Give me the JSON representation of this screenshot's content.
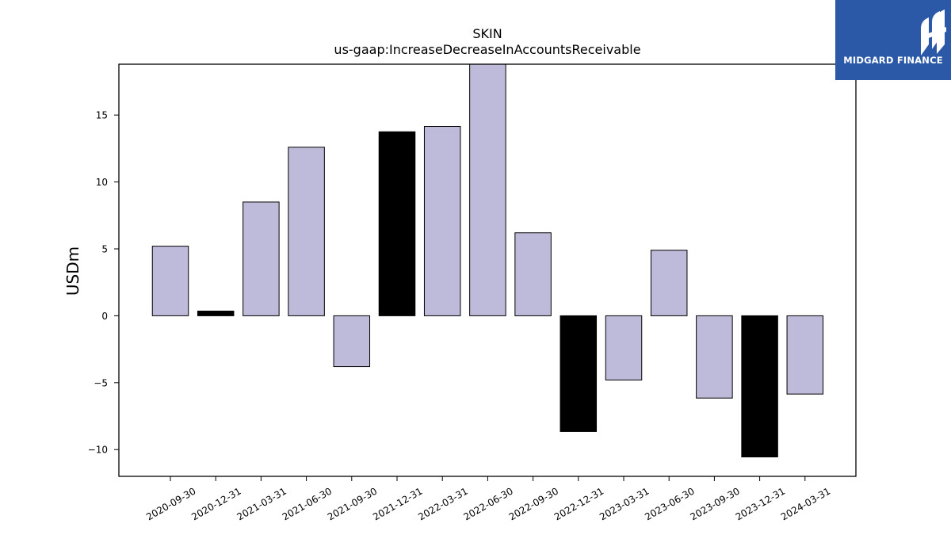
{
  "chart_data": {
    "type": "bar",
    "title": "SKIN",
    "subtitle": "us-gaap:IncreaseDecreaseInAccountsReceivable",
    "xlabel": "",
    "ylabel": "USDm",
    "categories": [
      "2020-09-30",
      "2020-12-31",
      "2021-03-31",
      "2021-06-30",
      "2021-09-30",
      "2021-12-31",
      "2022-03-31",
      "2022-06-30",
      "2022-09-30",
      "2022-12-31",
      "2023-03-31",
      "2023-06-30",
      "2023-09-30",
      "2023-12-31",
      "2024-03-31"
    ],
    "values": [
      5.2,
      0.35,
      8.5,
      12.6,
      -3.8,
      13.75,
      14.15,
      19.5,
      6.2,
      -8.65,
      -4.8,
      4.9,
      -6.15,
      -10.55,
      -5.85
    ],
    "highlight": [
      false,
      true,
      false,
      false,
      false,
      true,
      false,
      false,
      false,
      true,
      false,
      false,
      false,
      true,
      false
    ],
    "ylim": [
      -12,
      18.8
    ],
    "yticks": [
      -10,
      -5,
      0,
      5,
      10,
      15
    ],
    "ytick_labels": [
      "−10",
      "−5",
      "0",
      "5",
      "10",
      "15"
    ],
    "grid": false,
    "colors": {
      "bar": "#bebad9",
      "highlight": "#000000",
      "edge": "#000000"
    }
  },
  "logo": {
    "text": "MIDGARD FINANCE",
    "background": "#2b59a8"
  }
}
